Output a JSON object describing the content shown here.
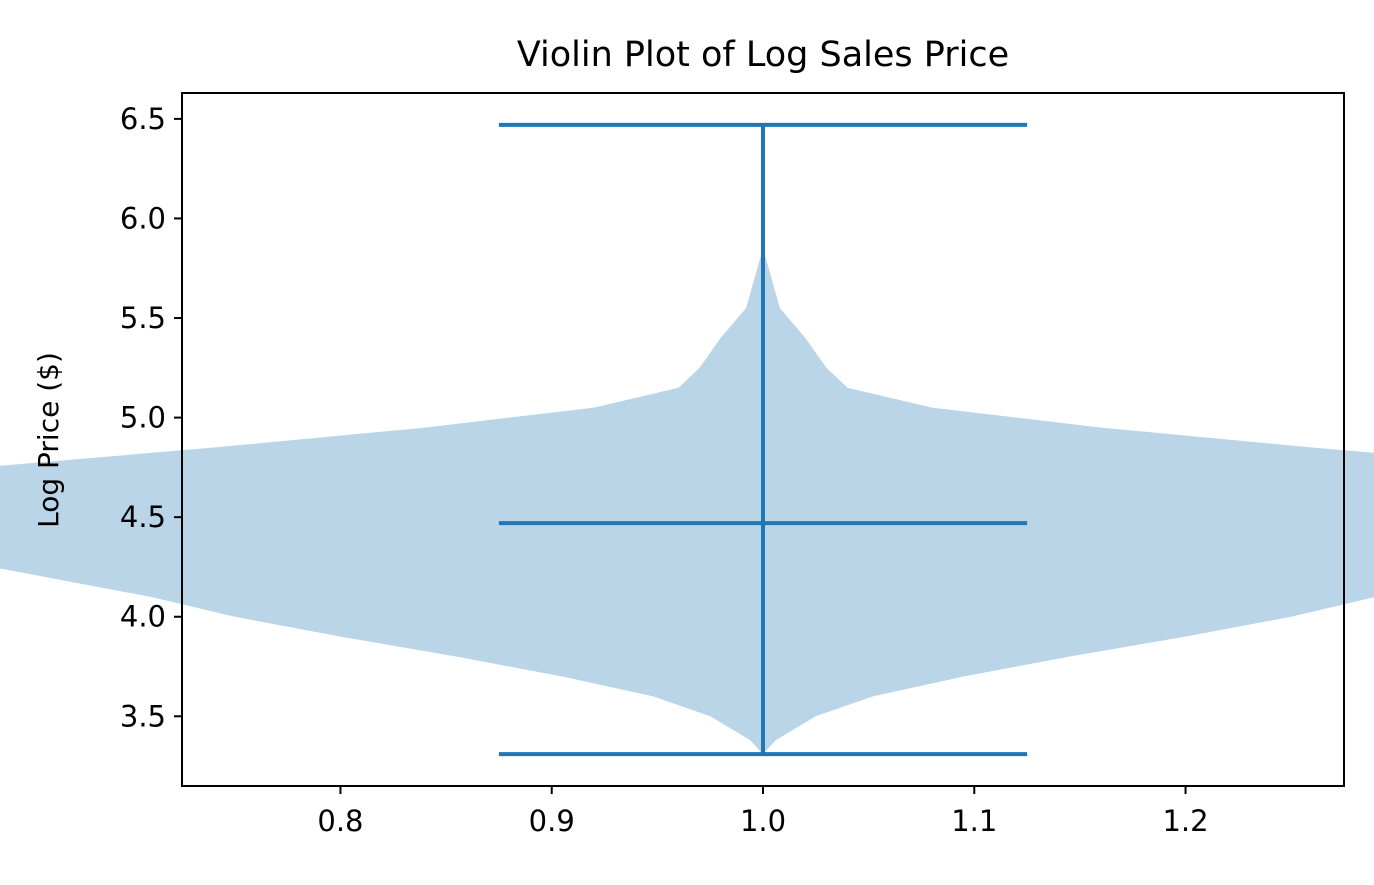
{
  "chart_data": {
    "type": "violin",
    "title": "Violin Plot of Log Sales Price",
    "xlabel": "",
    "ylabel": "Log Price ($)",
    "xlim": [
      0.725,
      1.275
    ],
    "ylim": [
      3.15,
      6.63
    ],
    "x_ticks": [
      0.8,
      0.9,
      1.0,
      1.1,
      1.2
    ],
    "x_tick_labels": [
      "0.8",
      "0.9",
      "1.0",
      "1.1",
      "1.2"
    ],
    "y_ticks": [
      3.5,
      4.0,
      4.5,
      5.0,
      5.5,
      6.0,
      6.5
    ],
    "y_tick_labels": [
      "3.5",
      "4.0",
      "4.5",
      "5.0",
      "5.5",
      "6.0",
      "6.5"
    ],
    "grid": false,
    "legend": "none",
    "violin": {
      "position": 1.0,
      "min": 3.31,
      "max": 6.47,
      "median": 4.47,
      "cap_halfwidth": 0.125,
      "density_profile": [
        [
          3.31,
          0.0
        ],
        [
          3.38,
          0.006
        ],
        [
          3.5,
          0.025
        ],
        [
          3.6,
          0.052
        ],
        [
          3.7,
          0.095
        ],
        [
          3.8,
          0.145
        ],
        [
          3.9,
          0.2
        ],
        [
          4.0,
          0.25
        ],
        [
          4.1,
          0.29
        ],
        [
          4.2,
          0.34
        ],
        [
          4.3,
          0.39
        ],
        [
          4.4,
          0.455
        ],
        [
          4.5,
          0.5
        ],
        [
          4.57,
          0.502
        ],
        [
          4.65,
          0.46
        ],
        [
          4.75,
          0.37
        ],
        [
          4.85,
          0.26
        ],
        [
          4.95,
          0.16
        ],
        [
          5.05,
          0.08
        ],
        [
          5.15,
          0.04
        ],
        [
          5.25,
          0.03
        ],
        [
          5.4,
          0.02
        ],
        [
          5.55,
          0.008
        ],
        [
          5.7,
          0.004
        ],
        [
          5.85,
          0.0
        ]
      ]
    },
    "colors": {
      "body": "#bbd5e8",
      "lines": "#1f77b4",
      "axes": "#000000",
      "background": "#ffffff"
    }
  }
}
